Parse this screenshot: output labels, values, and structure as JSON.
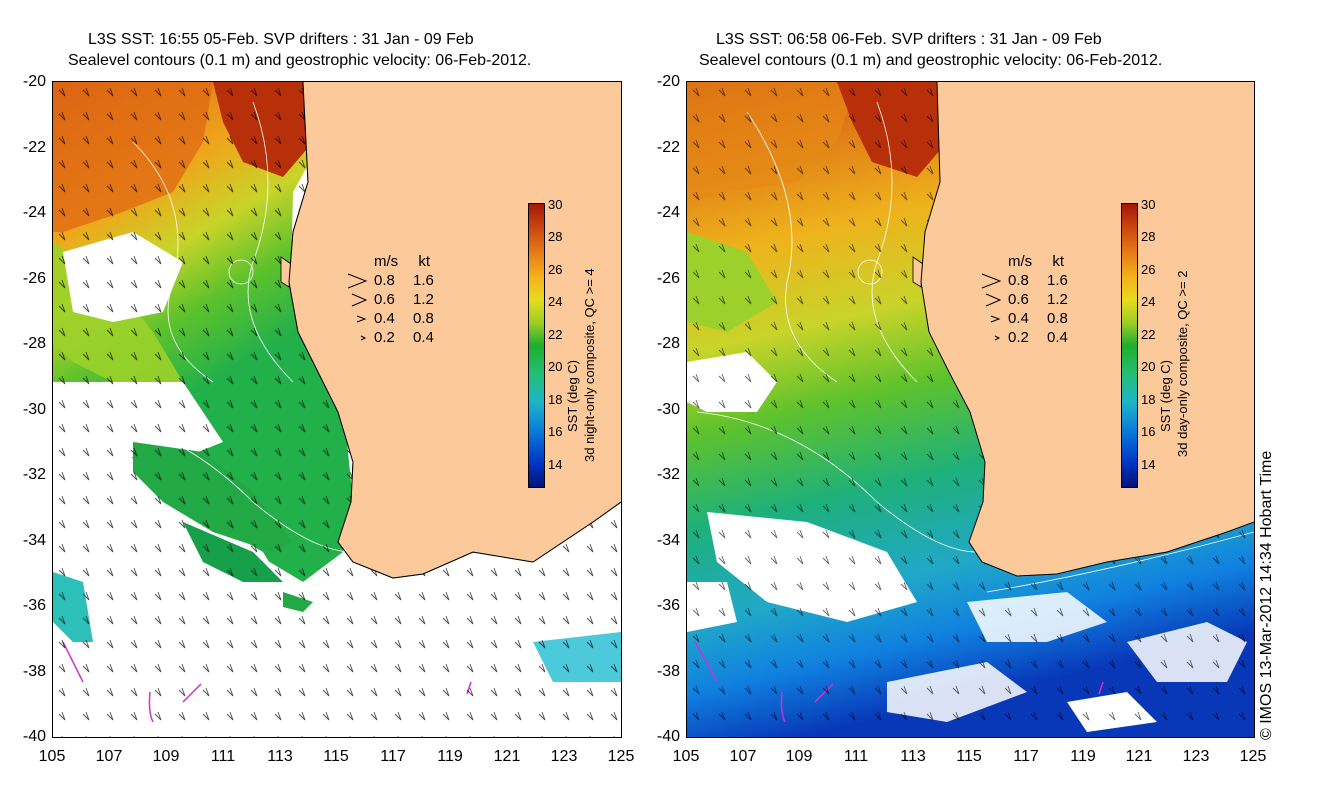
{
  "panels": [
    {
      "title_line1": "L3S SST: 16:55 05-Feb. SVP drifters : 31 Jan - 09 Feb",
      "title_line2": "Sealevel contours (0.1 m) and geostrophic velocity: 06-Feb-2012.",
      "colorbar_label": "SST (deg C)",
      "colorbar_sublabel": "3d night-only composite, QC >= 4"
    },
    {
      "title_line1": "L3S SST: 06:58 06-Feb. SVP drifters : 31 Jan - 09 Feb",
      "title_line2": "Sealevel contours (0.1 m) and geostrophic velocity: 06-Feb-2012.",
      "colorbar_label": "SST (deg C)",
      "colorbar_sublabel": "3d day-only composite, QC >= 2"
    }
  ],
  "axes": {
    "y_ticks": [
      "-20",
      "-22",
      "-24",
      "-26",
      "-28",
      "-30",
      "-32",
      "-34",
      "-36",
      "-38",
      "-40"
    ],
    "x_ticks": [
      "105",
      "107",
      "109",
      "111",
      "113",
      "115",
      "117",
      "119",
      "121",
      "123",
      "125"
    ],
    "lat_range": [
      -40,
      -20
    ],
    "lon_range": [
      105,
      125
    ]
  },
  "velocity_legend": {
    "unit_ms": "m/s",
    "unit_kt": "kt",
    "rows": [
      {
        "ms": "0.8",
        "kt": "1.6"
      },
      {
        "ms": "0.6",
        "kt": "1.2"
      },
      {
        "ms": "0.4",
        "kt": "0.8"
      },
      {
        "ms": "0.2",
        "kt": "0.4"
      }
    ]
  },
  "colorbar": {
    "ticks": [
      "30",
      "28",
      "26",
      "24",
      "22",
      "20",
      "18",
      "16",
      "14"
    ],
    "range": [
      12.5,
      30
    ],
    "colors": [
      "#00127a",
      "#0a7cd8",
      "#24bf74",
      "#1eae2e",
      "#e6dc1e",
      "#e78118",
      "#a41708"
    ]
  },
  "credit": "© IMOS 13-Mar-2012 14:34 Hobart Time",
  "colors": {
    "land": "#fcc99b",
    "cloud": "#ffffff",
    "contour": "#ffffff",
    "arrow": "#000000",
    "drifter": "#cc33cc"
  }
}
